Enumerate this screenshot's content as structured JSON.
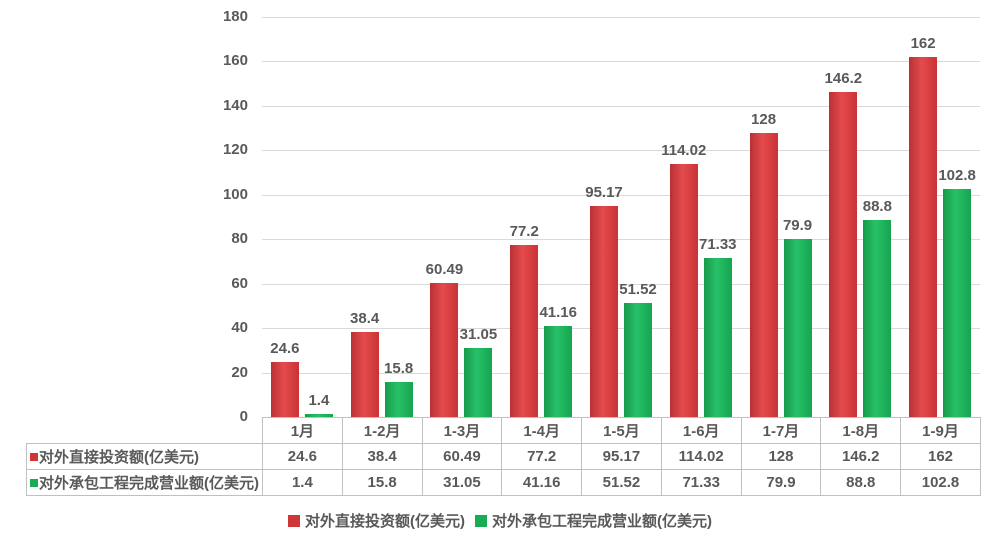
{
  "chart_data": {
    "type": "bar",
    "categories": [
      "1月",
      "1-2月",
      "1-3月",
      "1-4月",
      "1-5月",
      "1-6月",
      "1-7月",
      "1-8月",
      "1-9月"
    ],
    "series": [
      {
        "name": "对外直接投资额(亿美元)",
        "values": [
          24.6,
          38.4,
          60.49,
          77.2,
          95.17,
          114.02,
          128,
          146.2,
          162
        ],
        "color": "#cf3638",
        "gradient": [
          "#b93033",
          "#e44b4c",
          "#c93335"
        ]
      },
      {
        "name": "对外承包工程完成营业额(亿美元)",
        "values": [
          1.4,
          15.8,
          31.05,
          41.16,
          51.52,
          71.33,
          79.9,
          88.8,
          102.8
        ],
        "color": "#1cab55",
        "gradient": [
          "#189a4b",
          "#27c168",
          "#17a350"
        ]
      }
    ],
    "title": "",
    "xlabel": "",
    "ylabel": "",
    "ylim": [
      0,
      180
    ],
    "ytick_step": 20,
    "grid": "horizontal",
    "legend_position": "bottom",
    "show_data_table": true,
    "value_labels": true
  },
  "colors": {
    "text": "#595959",
    "gridline": "#d9d9d9",
    "table_border": "#c0c0c0",
    "background": "#ffffff"
  }
}
